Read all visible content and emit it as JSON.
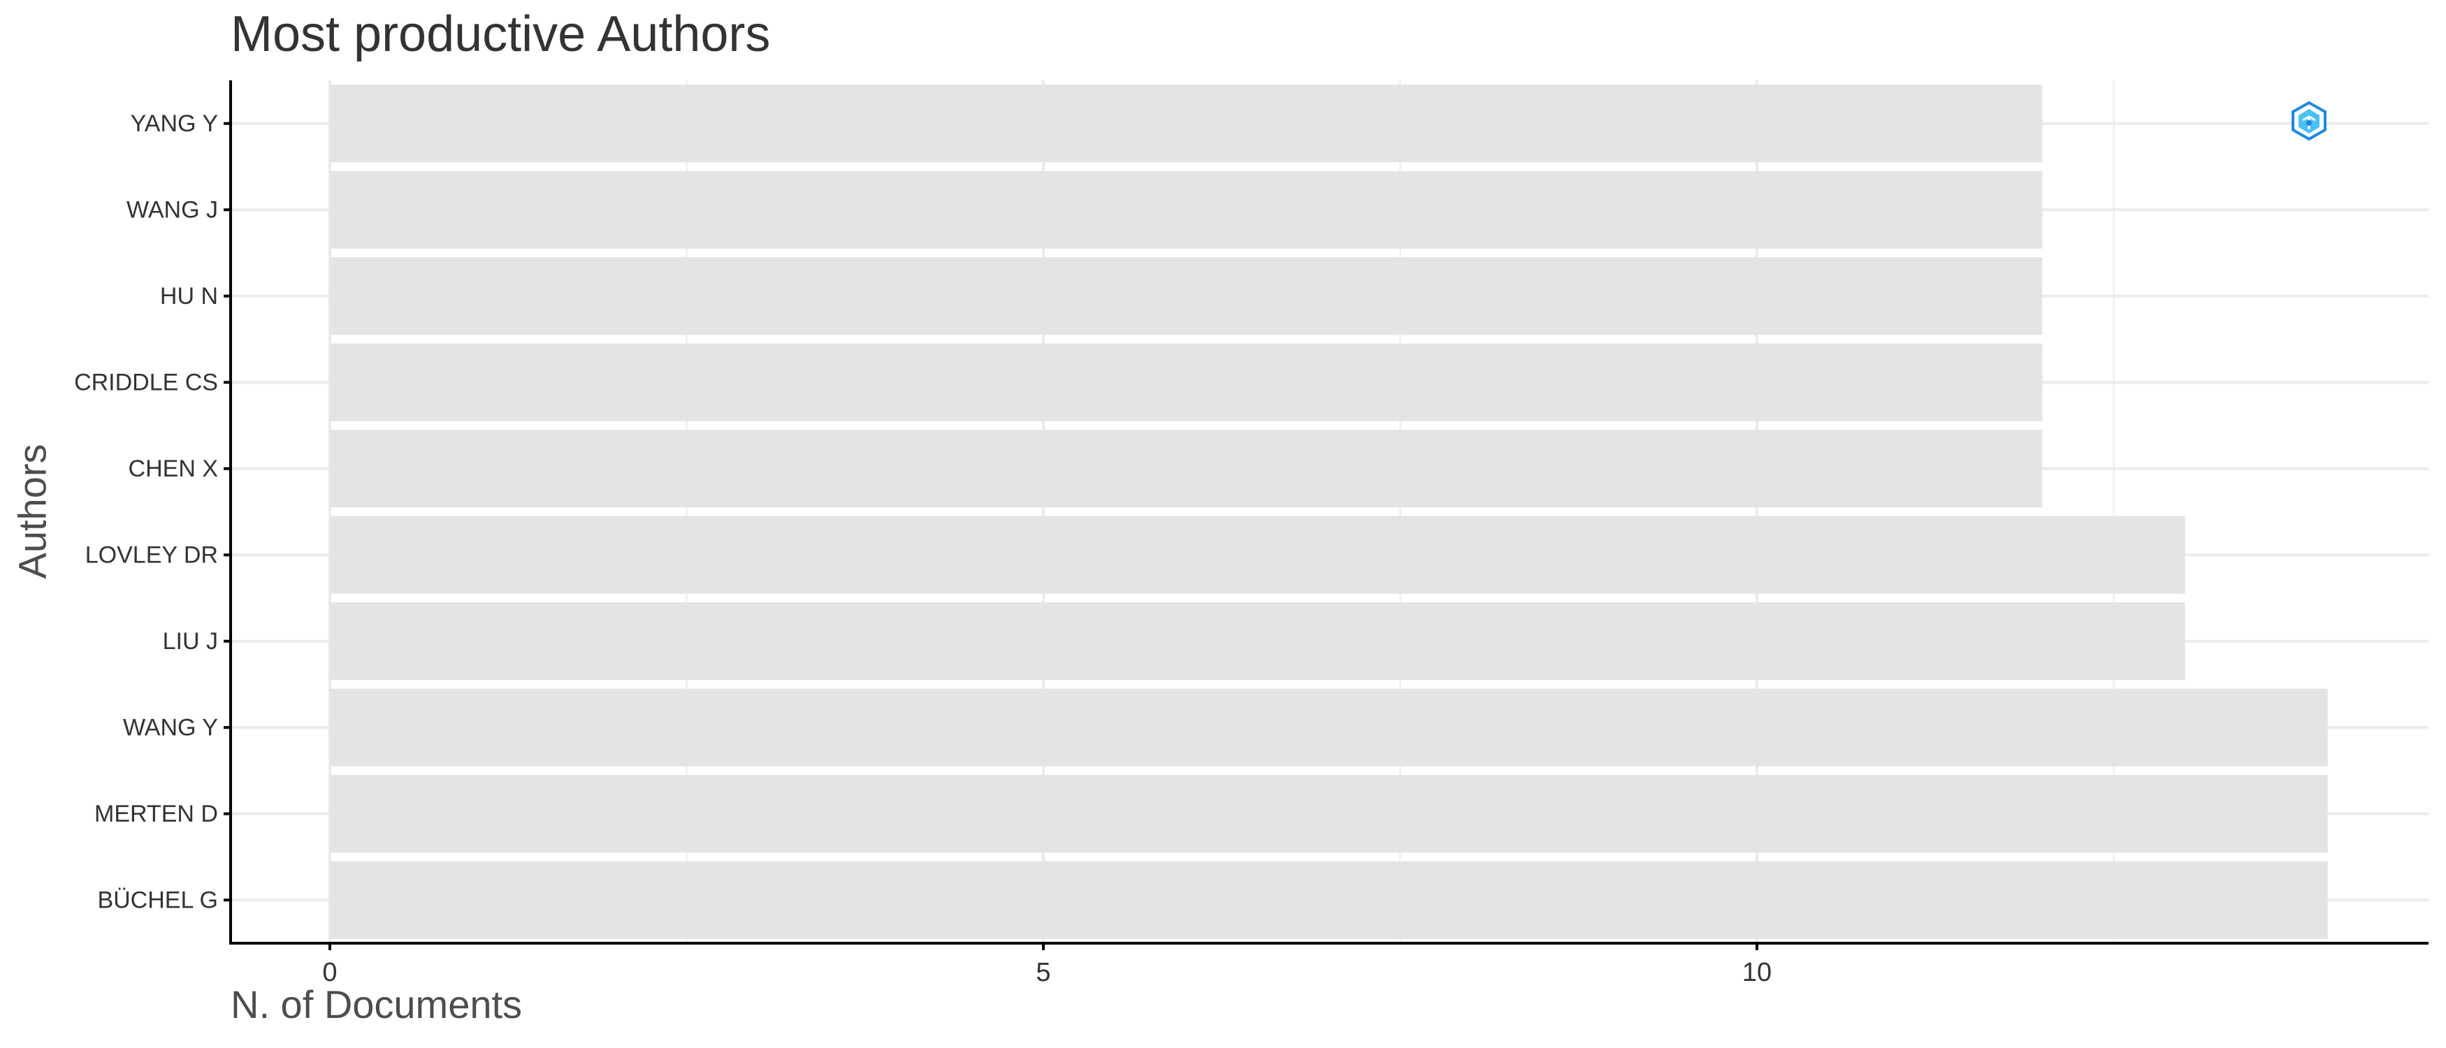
{
  "chart_data": {
    "type": "bar",
    "orientation": "horizontal",
    "title": "Most productive Authors",
    "xlabel": "N. of Documents",
    "ylabel": "Authors",
    "categories": [
      "YANG Y",
      "WANG J",
      "HU N",
      "CRIDDLE CS",
      "CHEN X",
      "LOVLEY DR",
      "LIU J",
      "WANG Y",
      "MERTEN D",
      "BÜCHEL G"
    ],
    "values": [
      12,
      12,
      12,
      12,
      12,
      13,
      13,
      14,
      14,
      14
    ],
    "xlim": [
      0,
      14.6
    ],
    "xticks": [
      0,
      5,
      10
    ],
    "grid": true,
    "legend": "none"
  },
  "colors": {
    "bar": "#e4e4e4",
    "grid": "#ebebeb",
    "axis": "#000000",
    "text": "#333333",
    "axis_title": "#4d4d4d",
    "logo_primary": "#1e88e5",
    "logo_secondary": "#29b6f6"
  },
  "icons": {
    "logo": "bibliometrix-logo-icon"
  }
}
